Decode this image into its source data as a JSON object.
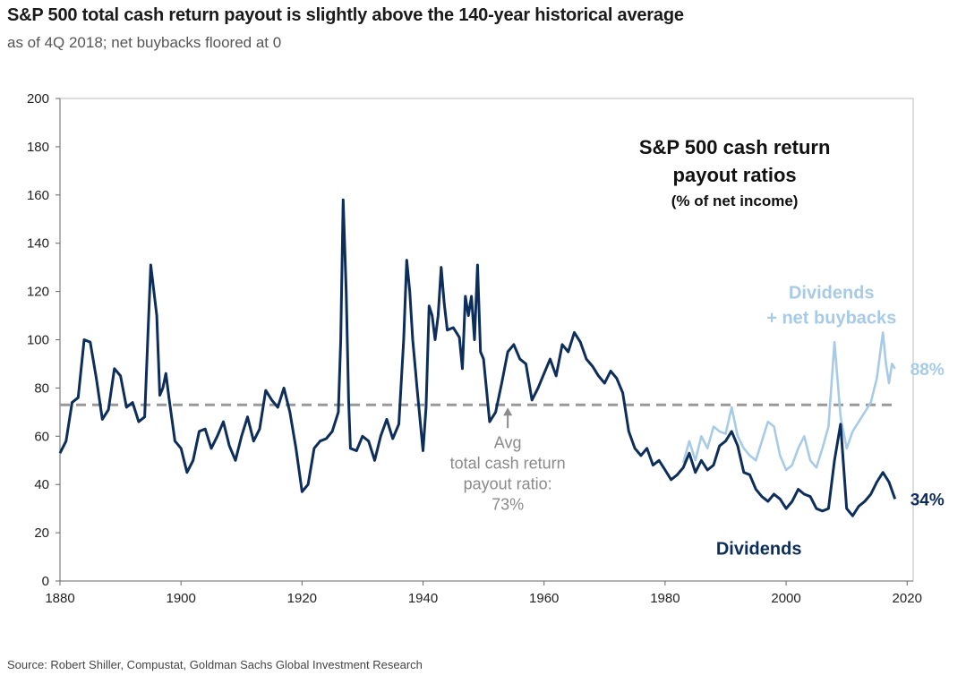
{
  "header": {
    "title": "S&P 500 total cash return payout is slightly above the 140-year historical average",
    "subtitle": "as of 4Q 2018; net buybacks floored at 0"
  },
  "footer": {
    "source": "Source: Robert Shiller, Compustat, Goldman Sachs Global Investment Research"
  },
  "chart_data": {
    "type": "line",
    "title": "S&P 500 cash return payout ratios",
    "title_lines": [
      "S&P 500 cash return",
      "payout ratios"
    ],
    "subtitle_in_chart": "(% of net income)",
    "xlabel": "",
    "ylabel": "",
    "xlim": [
      1880,
      2021
    ],
    "ylim": [
      0,
      200
    ],
    "x_ticks": [
      1880,
      1900,
      1920,
      1940,
      1960,
      1980,
      2000,
      2020
    ],
    "y_ticks": [
      0,
      20,
      40,
      60,
      80,
      100,
      120,
      140,
      160,
      180,
      200
    ],
    "colors": {
      "dividends": "#0d2d5a",
      "total": "#a7cbe6",
      "average": "#999999",
      "annotation": "#8a8a8a",
      "axis": "#666666"
    },
    "average": {
      "value": 73,
      "label_lines": [
        "Avg",
        "total cash return",
        "payout ratio:",
        "73%"
      ],
      "arrow_year": 1954
    },
    "series": [
      {
        "name": "Dividends",
        "key": "dividends",
        "end_label": "34%",
        "legend_lines": [
          "Dividends"
        ],
        "points": [
          [
            1880,
            53
          ],
          [
            1881,
            58
          ],
          [
            1882,
            74
          ],
          [
            1883,
            76
          ],
          [
            1884,
            100
          ],
          [
            1885,
            99
          ],
          [
            1886,
            84
          ],
          [
            1887,
            67
          ],
          [
            1888,
            71
          ],
          [
            1889,
            88
          ],
          [
            1890,
            85
          ],
          [
            1891,
            72
          ],
          [
            1892,
            74
          ],
          [
            1893,
            66
          ],
          [
            1894,
            68
          ],
          [
            1894.5,
            100
          ],
          [
            1895,
            131
          ],
          [
            1896,
            110
          ],
          [
            1896.5,
            77
          ],
          [
            1897,
            80
          ],
          [
            1897.5,
            86
          ],
          [
            1898,
            76
          ],
          [
            1899,
            58
          ],
          [
            1900,
            55
          ],
          [
            1901,
            45
          ],
          [
            1902,
            50
          ],
          [
            1903,
            62
          ],
          [
            1904,
            63
          ],
          [
            1905,
            55
          ],
          [
            1906,
            60
          ],
          [
            1907,
            66
          ],
          [
            1908,
            56
          ],
          [
            1909,
            50
          ],
          [
            1910,
            60
          ],
          [
            1911,
            68
          ],
          [
            1912,
            58
          ],
          [
            1913,
            63
          ],
          [
            1914,
            79
          ],
          [
            1915,
            75
          ],
          [
            1916,
            72
          ],
          [
            1917,
            80
          ],
          [
            1918,
            70
          ],
          [
            1919,
            55
          ],
          [
            1920,
            37
          ],
          [
            1921,
            40
          ],
          [
            1922,
            55
          ],
          [
            1923,
            58
          ],
          [
            1924,
            59
          ],
          [
            1925,
            62
          ],
          [
            1926,
            70
          ],
          [
            1926.4,
            100
          ],
          [
            1926.8,
            158
          ],
          [
            1927.3,
            120
          ],
          [
            1927.7,
            75
          ],
          [
            1928,
            55
          ],
          [
            1929,
            54
          ],
          [
            1930,
            60
          ],
          [
            1931,
            58
          ],
          [
            1932,
            50
          ],
          [
            1933,
            60
          ],
          [
            1934,
            67
          ],
          [
            1935,
            59
          ],
          [
            1936,
            65
          ],
          [
            1936.8,
            100
          ],
          [
            1937.3,
            133
          ],
          [
            1937.8,
            120
          ],
          [
            1938.3,
            100
          ],
          [
            1938.8,
            86
          ],
          [
            1939,
            80
          ],
          [
            1940,
            54
          ],
          [
            1940.5,
            72
          ],
          [
            1941,
            114
          ],
          [
            1941.5,
            110
          ],
          [
            1942,
            100
          ],
          [
            1942.5,
            110
          ],
          [
            1943,
            130
          ],
          [
            1943.5,
            115
          ],
          [
            1944,
            104
          ],
          [
            1945,
            105
          ],
          [
            1946,
            101
          ],
          [
            1946.5,
            88
          ],
          [
            1947,
            118
          ],
          [
            1947.5,
            110
          ],
          [
            1948,
            118
          ],
          [
            1948.5,
            100
          ],
          [
            1949,
            131
          ],
          [
            1949.5,
            95
          ],
          [
            1950,
            92
          ],
          [
            1951,
            66
          ],
          [
            1952,
            70
          ],
          [
            1953,
            82
          ],
          [
            1954,
            95
          ],
          [
            1955,
            98
          ],
          [
            1956,
            92
          ],
          [
            1957,
            90
          ],
          [
            1958,
            75
          ],
          [
            1959,
            80
          ],
          [
            1960,
            86
          ],
          [
            1961,
            92
          ],
          [
            1962,
            85
          ],
          [
            1963,
            98
          ],
          [
            1964,
            95
          ],
          [
            1965,
            103
          ],
          [
            1966,
            99
          ],
          [
            1967,
            92
          ],
          [
            1968,
            89
          ],
          [
            1969,
            85
          ],
          [
            1970,
            82
          ],
          [
            1971,
            87
          ],
          [
            1972,
            84
          ],
          [
            1973,
            78
          ],
          [
            1974,
            62
          ],
          [
            1975,
            55
          ],
          [
            1976,
            52
          ],
          [
            1977,
            55
          ],
          [
            1978,
            48
          ],
          [
            1979,
            50
          ],
          [
            1980,
            46
          ],
          [
            1981,
            42
          ],
          [
            1982,
            44
          ],
          [
            1983,
            47
          ],
          [
            1984,
            53
          ],
          [
            1985,
            45
          ],
          [
            1986,
            50
          ],
          [
            1987,
            46
          ],
          [
            1988,
            48
          ],
          [
            1989,
            56
          ],
          [
            1990,
            58
          ],
          [
            1991,
            62
          ],
          [
            1992,
            56
          ],
          [
            1993,
            45
          ],
          [
            1994,
            44
          ],
          [
            1995,
            38
          ],
          [
            1996,
            35
          ],
          [
            1997,
            33
          ],
          [
            1998,
            36
          ],
          [
            1999,
            34
          ],
          [
            2000,
            30
          ],
          [
            2001,
            33
          ],
          [
            2002,
            38
          ],
          [
            2003,
            36
          ],
          [
            2004,
            35
          ],
          [
            2005,
            30
          ],
          [
            2006,
            29
          ],
          [
            2007,
            30
          ],
          [
            2008,
            50
          ],
          [
            2009,
            65
          ],
          [
            2010,
            30
          ],
          [
            2011,
            27
          ],
          [
            2012,
            31
          ],
          [
            2013,
            33
          ],
          [
            2014,
            36
          ],
          [
            2015,
            41
          ],
          [
            2016,
            45
          ],
          [
            2017,
            41
          ],
          [
            2018,
            34
          ]
        ]
      },
      {
        "name": "Dividends + net buybacks",
        "key": "total",
        "end_label": "88%",
        "legend_lines": [
          "Dividends",
          "+ net buybacks"
        ],
        "points": [
          [
            1983,
            49
          ],
          [
            1984,
            58
          ],
          [
            1985,
            50
          ],
          [
            1986,
            60
          ],
          [
            1987,
            55
          ],
          [
            1988,
            64
          ],
          [
            1989,
            62
          ],
          [
            1990,
            61
          ],
          [
            1991,
            72
          ],
          [
            1992,
            60
          ],
          [
            1993,
            55
          ],
          [
            1994,
            52
          ],
          [
            1995,
            50
          ],
          [
            1996,
            58
          ],
          [
            1997,
            66
          ],
          [
            1998,
            64
          ],
          [
            1999,
            52
          ],
          [
            2000,
            46
          ],
          [
            2001,
            48
          ],
          [
            2002,
            55
          ],
          [
            2003,
            60
          ],
          [
            2004,
            50
          ],
          [
            2005,
            47
          ],
          [
            2006,
            55
          ],
          [
            2007,
            64
          ],
          [
            2008,
            99
          ],
          [
            2009,
            68
          ],
          [
            2010,
            55
          ],
          [
            2011,
            62
          ],
          [
            2012,
            66
          ],
          [
            2013,
            70
          ],
          [
            2014,
            74
          ],
          [
            2015,
            84
          ],
          [
            2016,
            103
          ],
          [
            2016.5,
            90
          ],
          [
            2017,
            82
          ],
          [
            2017.5,
            90
          ],
          [
            2018,
            88
          ]
        ]
      }
    ]
  }
}
